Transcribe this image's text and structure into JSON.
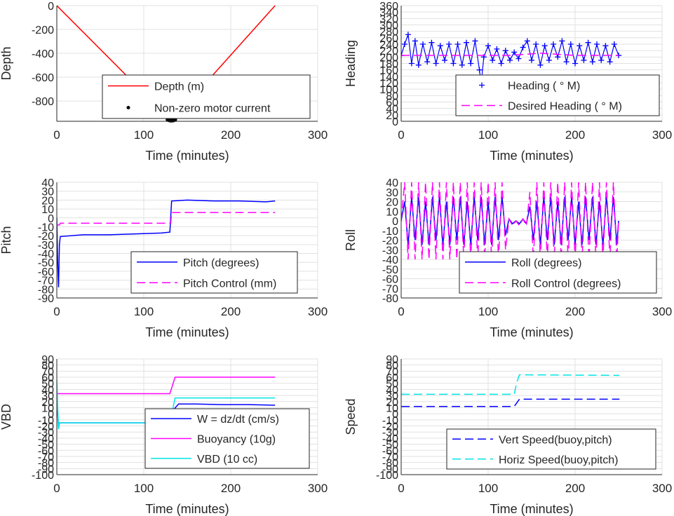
{
  "chart_data": [
    {
      "type": "line",
      "ylabel": "Depth",
      "xlabel": "Time (minutes)",
      "xlim": [
        0,
        300
      ],
      "ylim": [
        -970,
        0
      ],
      "xticks": [
        "0",
        "100",
        "200",
        "300"
      ],
      "yticks": [
        {
          "v": 0,
          "label": "0"
        },
        {
          "v": -200,
          "label": "-200"
        },
        {
          "v": -400,
          "label": "-400"
        },
        {
          "v": -600,
          "label": "-600"
        },
        {
          "v": -800,
          "label": "-800"
        }
      ],
      "grid": true,
      "legend_position": "lower-middle",
      "series": [
        {
          "name": "Depth (m)",
          "color": "#ff0000",
          "style": "solid",
          "x": [
            0,
            131,
            133,
            251
          ],
          "y": [
            0,
            -960,
            -960,
            0
          ]
        },
        {
          "name": "Non-zero motor current",
          "color": "#000000",
          "style": "dots",
          "x": [
            128,
            129.5,
            131,
            132.5,
            134,
            135.5
          ],
          "y": [
            -955,
            -958,
            -960,
            -960,
            -958,
            -955
          ]
        }
      ]
    },
    {
      "type": "scatter",
      "ylabel": "Heading",
      "xlabel": "Time (minutes)",
      "xlim": [
        0,
        300
      ],
      "ylim": [
        0,
        360
      ],
      "xticks": [
        "0",
        "100",
        "200",
        "300"
      ],
      "yticks": [
        {
          "v": 0,
          "label": "0"
        },
        {
          "v": 20,
          "label": "20"
        },
        {
          "v": 40,
          "label": "40"
        },
        {
          "v": 60,
          "label": "60"
        },
        {
          "v": 80,
          "label": "80"
        },
        {
          "v": 100,
          "label": "100"
        },
        {
          "v": 120,
          "label": "120"
        },
        {
          "v": 140,
          "label": "140"
        },
        {
          "v": 160,
          "label": "160"
        },
        {
          "v": 180,
          "label": "180"
        },
        {
          "v": 200,
          "label": "200"
        },
        {
          "v": 220,
          "label": "220"
        },
        {
          "v": 240,
          "label": "240"
        },
        {
          "v": 260,
          "label": "260"
        },
        {
          "v": 280,
          "label": "280"
        },
        {
          "v": 300,
          "label": "300"
        },
        {
          "v": 320,
          "label": "320"
        },
        {
          "v": 340,
          "label": "340"
        },
        {
          "v": 360,
          "label": "360"
        }
      ],
      "grid": true,
      "legend_position": "lower-right",
      "series": [
        {
          "name": "Heading ( ° M)",
          "color": "#0000ff",
          "style": "plus-markers",
          "x": [
            0,
            4,
            8,
            12,
            16,
            20,
            25,
            30,
            35,
            40,
            45,
            50,
            55,
            60,
            65,
            70,
            75,
            80,
            85,
            90,
            92,
            95,
            100,
            105,
            110,
            115,
            120,
            125,
            130,
            135,
            140,
            145,
            150,
            155,
            160,
            165,
            170,
            175,
            180,
            185,
            190,
            195,
            200,
            205,
            210,
            215,
            220,
            225,
            230,
            235,
            240,
            245,
            250
          ],
          "y": [
            205,
            240,
            270,
            180,
            250,
            175,
            240,
            185,
            245,
            180,
            235,
            190,
            240,
            180,
            240,
            175,
            245,
            180,
            250,
            160,
            115,
            200,
            235,
            190,
            225,
            180,
            220,
            190,
            215,
            195,
            230,
            250,
            190,
            240,
            175,
            235,
            190,
            240,
            200,
            250,
            185,
            240,
            180,
            235,
            190,
            245,
            185,
            240,
            190,
            235,
            185,
            240,
            205
          ]
        },
        {
          "name": "Desired Heading (   ° M)",
          "color": "#ff00ff",
          "style": "dashed",
          "x": [
            0,
            125,
            160,
            200,
            250
          ],
          "y": [
            205,
            205,
            212,
            205,
            205
          ]
        }
      ]
    },
    {
      "type": "line",
      "ylabel": "Pitch",
      "xlabel": "Time (minutes)",
      "xlim": [
        0,
        300
      ],
      "ylim": [
        -90,
        40
      ],
      "xticks": [
        "0",
        "100",
        "200",
        "300"
      ],
      "yticks": [
        {
          "v": 40,
          "label": "40"
        },
        {
          "v": 30,
          "label": "30"
        },
        {
          "v": 20,
          "label": "20"
        },
        {
          "v": 10,
          "label": "10"
        },
        {
          "v": 0,
          "label": "0"
        },
        {
          "v": -10,
          "label": "-10"
        },
        {
          "v": -20,
          "label": "-20"
        },
        {
          "v": -30,
          "label": "-30"
        },
        {
          "v": -40,
          "label": "-40"
        },
        {
          "v": -50,
          "label": "-50"
        },
        {
          "v": -60,
          "label": "-60"
        },
        {
          "v": -70,
          "label": "-70"
        },
        {
          "v": -80,
          "label": "-80"
        },
        {
          "v": -90,
          "label": "-90"
        }
      ],
      "grid": true,
      "legend_position": "lower-right",
      "series": [
        {
          "name": "Pitch (degrees)",
          "color": "#0000ff",
          "style": "solid",
          "x": [
            0,
            1,
            2,
            3,
            4,
            30,
            60,
            90,
            120,
            130,
            132,
            150,
            180,
            210,
            240,
            251
          ],
          "y": [
            0,
            -50,
            -78,
            -30,
            -21,
            -19,
            -19,
            -18,
            -17,
            -16,
            19,
            20,
            19,
            19,
            18,
            19
          ]
        },
        {
          "name": "Pitch Control (mm)",
          "color": "#ff00ff",
          "style": "dashed",
          "x": [
            0,
            3,
            4,
            131,
            132,
            251
          ],
          "y": [
            -8,
            -8,
            -6,
            -6,
            6,
            6
          ]
        }
      ]
    },
    {
      "type": "line",
      "ylabel": "Roll",
      "xlabel": "Time (minutes)",
      "xlim": [
        0,
        300
      ],
      "ylim": [
        -80,
        40
      ],
      "xticks": [
        "0",
        "100",
        "200",
        "300"
      ],
      "yticks": [
        {
          "v": 40,
          "label": "40"
        },
        {
          "v": 30,
          "label": "30"
        },
        {
          "v": 20,
          "label": "20"
        },
        {
          "v": 10,
          "label": "10"
        },
        {
          "v": 0,
          "label": "0"
        },
        {
          "v": -10,
          "label": "-10"
        },
        {
          "v": -20,
          "label": "-20"
        },
        {
          "v": -30,
          "label": "-30"
        },
        {
          "v": -40,
          "label": "-40"
        },
        {
          "v": -50,
          "label": "-50"
        },
        {
          "v": -60,
          "label": "-60"
        },
        {
          "v": -70,
          "label": "-70"
        },
        {
          "v": -80,
          "label": "-80"
        }
      ],
      "grid": true,
      "legend_position": "lower-right",
      "series": [
        {
          "name": "Roll (degrees)",
          "color": "#0000ff",
          "style": "solid",
          "x": [
            0,
            4,
            8,
            12,
            16,
            20,
            24,
            28,
            32,
            36,
            40,
            44,
            48,
            52,
            56,
            60,
            64,
            68,
            72,
            76,
            80,
            84,
            88,
            92,
            96,
            100,
            104,
            108,
            112,
            116,
            120,
            124,
            128,
            132,
            136,
            140,
            144,
            148,
            152,
            156,
            160,
            164,
            168,
            172,
            176,
            180,
            184,
            188,
            192,
            196,
            200,
            204,
            208,
            212,
            216,
            220,
            224,
            228,
            232,
            236,
            240,
            244,
            248,
            250
          ],
          "y": [
            0,
            20,
            -25,
            25,
            -20,
            25,
            -25,
            20,
            -25,
            25,
            -20,
            25,
            -25,
            20,
            -25,
            25,
            -20,
            25,
            -25,
            20,
            -25,
            25,
            -20,
            25,
            -25,
            20,
            -25,
            25,
            -20,
            25,
            -15,
            2,
            -3,
            0,
            -3,
            2,
            -3,
            15,
            -20,
            20,
            -25,
            25,
            -20,
            25,
            -25,
            20,
            -25,
            25,
            -20,
            25,
            -25,
            20,
            -25,
            25,
            -20,
            25,
            -25,
            20,
            -25,
            25,
            -20,
            25,
            -25,
            0
          ]
        },
        {
          "name": "Roll Control (degrees)",
          "color": "#ff00ff",
          "style": "dashed",
          "x": [
            0,
            4,
            8,
            12,
            16,
            20,
            24,
            28,
            32,
            36,
            40,
            44,
            48,
            52,
            56,
            60,
            64,
            68,
            72,
            76,
            80,
            84,
            88,
            92,
            96,
            100,
            104,
            108,
            112,
            116,
            120,
            124,
            128,
            132,
            136,
            140,
            144,
            148,
            152,
            156,
            160,
            164,
            168,
            172,
            176,
            180,
            184,
            188,
            192,
            196,
            200,
            204,
            208,
            212,
            216,
            220,
            224,
            228,
            232,
            236,
            240,
            244,
            248,
            250
          ],
          "y": [
            0,
            40,
            -40,
            40,
            -40,
            40,
            -40,
            40,
            -40,
            40,
            -40,
            40,
            -40,
            40,
            -40,
            40,
            -40,
            40,
            -40,
            40,
            -40,
            40,
            -40,
            40,
            -40,
            40,
            -40,
            40,
            -40,
            40,
            -30,
            2,
            -5,
            0,
            -5,
            2,
            -5,
            30,
            -40,
            40,
            -40,
            40,
            -40,
            40,
            -40,
            40,
            -40,
            40,
            -40,
            40,
            -40,
            40,
            -40,
            40,
            -40,
            40,
            -40,
            40,
            -40,
            40,
            -40,
            40,
            -40,
            0
          ]
        }
      ]
    },
    {
      "type": "line",
      "ylabel": "VBD",
      "xlabel": "Time (minutes)",
      "xlim": [
        0,
        300
      ],
      "ylim": [
        -100,
        90
      ],
      "xticks": [
        "0",
        "100",
        "200",
        "300"
      ],
      "yticks": [
        {
          "v": 90,
          "label": "90"
        },
        {
          "v": 80,
          "label": "80"
        },
        {
          "v": 70,
          "label": "70"
        },
        {
          "v": 60,
          "label": "60"
        },
        {
          "v": 50,
          "label": "50"
        },
        {
          "v": 40,
          "label": "40"
        },
        {
          "v": 30,
          "label": "30"
        },
        {
          "v": 20,
          "label": "20"
        },
        {
          "v": 10,
          "label": "10"
        },
        {
          "v": 0,
          "label": "0"
        },
        {
          "v": -10,
          "label": "-10"
        },
        {
          "v": -20,
          "label": "-20"
        },
        {
          "v": -30,
          "label": "-30"
        },
        {
          "v": -40,
          "label": "-40"
        },
        {
          "v": -50,
          "label": "-50"
        },
        {
          "v": -60,
          "label": "-60"
        },
        {
          "v": -70,
          "label": "-70"
        },
        {
          "v": -80,
          "label": "-80"
        },
        {
          "v": -90,
          "label": "-90"
        },
        {
          "v": -100,
          "label": "-100"
        }
      ],
      "grid": true,
      "legend_position": "lower-right",
      "series": [
        {
          "name": "W = dz/dt (cm/s)",
          "color": "#0000ff",
          "style": "solid",
          "x": [
            0,
            1,
            2,
            3,
            5,
            30,
            60,
            90,
            120,
            130,
            135,
            140,
            160,
            190,
            220,
            251
          ],
          "y": [
            35,
            0,
            -25,
            -15,
            -15,
            -15,
            -15,
            -15,
            -15,
            -14,
            8,
            16,
            16,
            15,
            15,
            14
          ]
        },
        {
          "name": "Buoyancy (10g)",
          "color": "#ff00ff",
          "style": "solid",
          "x": [
            0,
            130,
            136,
            251
          ],
          "y": [
            33,
            33,
            60,
            60
          ]
        },
        {
          "name": "VBD (10 cc)",
          "color": "#00e5e5",
          "style": "solid",
          "x": [
            0,
            1,
            2,
            3,
            5,
            130,
            136,
            251
          ],
          "y": [
            55,
            10,
            -25,
            -15,
            -15,
            -15,
            26,
            26
          ]
        }
      ]
    },
    {
      "type": "line",
      "ylabel": "Speed",
      "xlabel": "Time (minutes)",
      "xlim": [
        0,
        300
      ],
      "ylim": [
        -100,
        90
      ],
      "xticks": [
        "0",
        "100",
        "200",
        "300"
      ],
      "yticks": [
        {
          "v": 90,
          "label": "90"
        },
        {
          "v": 80,
          "label": "80"
        },
        {
          "v": 70,
          "label": "70"
        },
        {
          "v": 60,
          "label": "60"
        },
        {
          "v": 50,
          "label": "50"
        },
        {
          "v": 40,
          "label": "40"
        },
        {
          "v": 30,
          "label": "30"
        },
        {
          "v": 20,
          "label": "20"
        },
        {
          "v": 10,
          "label": "10"
        },
        {
          "v": 0,
          "label": "0"
        },
        {
          "v": -10,
          "label": "-10"
        },
        {
          "v": -20,
          "label": "-20"
        },
        {
          "v": -30,
          "label": "-30"
        },
        {
          "v": -40,
          "label": "-40"
        },
        {
          "v": -50,
          "label": "-50"
        },
        {
          "v": -60,
          "label": "-60"
        },
        {
          "v": -70,
          "label": "-70"
        },
        {
          "v": -80,
          "label": "-80"
        },
        {
          "v": -90,
          "label": "-90"
        },
        {
          "v": -100,
          "label": "-100"
        }
      ],
      "grid": true,
      "legend_position": "lower-right",
      "series": [
        {
          "name": "Vert Speed(buoy,pitch)",
          "color": "#0000ff",
          "style": "dashed",
          "x": [
            0,
            130,
            133,
            136,
            251
          ],
          "y": [
            12,
            12,
            18,
            24,
            24
          ]
        },
        {
          "name": "Horiz Speed(buoy,pitch)",
          "color": "#00e5e5",
          "style": "dashed",
          "x": [
            0,
            130,
            133,
            136,
            251
          ],
          "y": [
            32,
            32,
            52,
            64,
            63
          ]
        }
      ]
    }
  ]
}
